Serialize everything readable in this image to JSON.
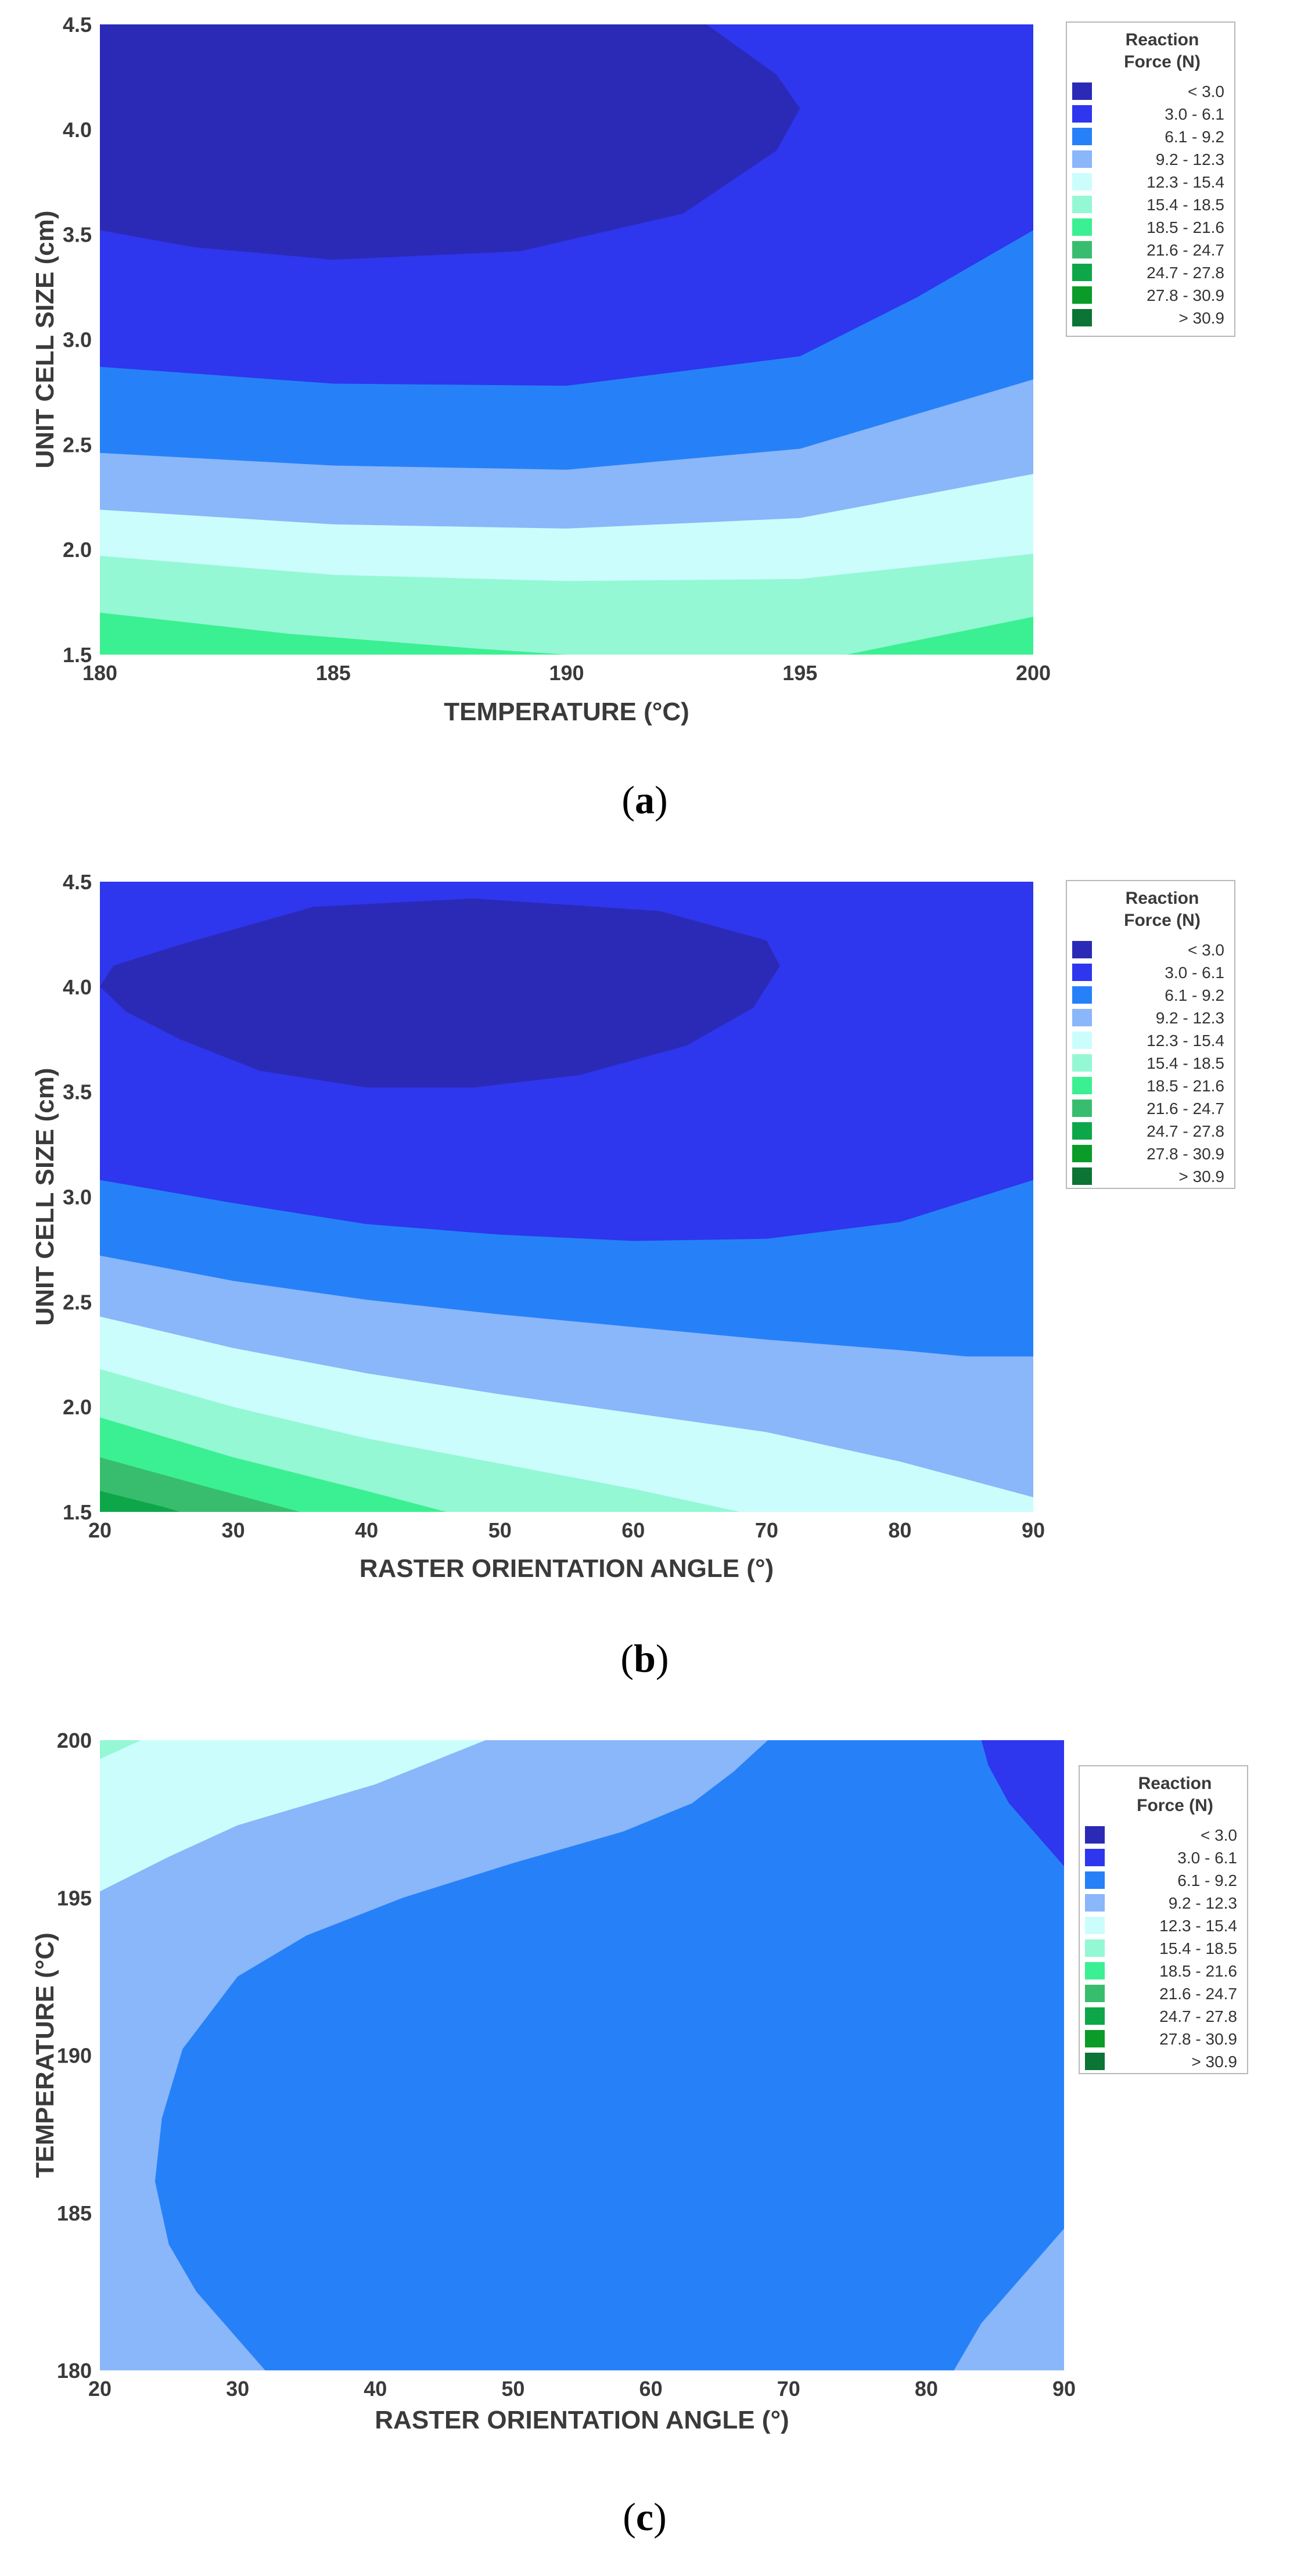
{
  "legend": {
    "title_line1": "Reaction",
    "title_line2": "Force (N)",
    "levels": [
      {
        "label": "<  3.0",
        "color": "#2b2ab6"
      },
      {
        "label": "3.0  -  6.1",
        "color": "#2e36ee"
      },
      {
        "label": "6.1  -  9.2",
        "color": "#2681f8"
      },
      {
        "label": "9.2  -  12.3",
        "color": "#8ab6fa"
      },
      {
        "label": "12.3  -  15.4",
        "color": "#ccfdfd"
      },
      {
        "label": "15.4  -  18.5",
        "color": "#94f8d4"
      },
      {
        "label": "18.5  -  21.6",
        "color": "#3bf092"
      },
      {
        "label": "21.6  -  24.7",
        "color": "#38bd6e"
      },
      {
        "label": "24.7  -  27.8",
        "color": "#0da74a"
      },
      {
        "label": "27.8  -  30.9",
        "color": "#0b9b28"
      },
      {
        "label": "> 30.9",
        "color": "#0c7434"
      }
    ]
  },
  "chart_data": [
    {
      "type": "contour",
      "panel": "a",
      "caption_letter": "a",
      "xlabel": "TEMPERATURE (°C)",
      "ylabel": "UNIT CELL SIZE (cm)",
      "xlim": [
        180,
        200
      ],
      "ylim": [
        1.5,
        4.5
      ],
      "xticks": [
        "180",
        "185",
        "190",
        "195",
        "200"
      ],
      "yticks": [
        "1.5",
        "2.0",
        "2.5",
        "3.0",
        "3.5",
        "4.0",
        "4.5"
      ],
      "regions": [
        {
          "level": "3.0  -  6.1",
          "points": [
            [
              180,
              4.5
            ],
            [
              200,
              4.5
            ],
            [
              200,
              1.5
            ],
            [
              180,
              1.5
            ]
          ]
        },
        {
          "level": "6.1  -  9.2",
          "points": [
            [
              180,
              2.87
            ],
            [
              185,
              2.79
            ],
            [
              190,
              2.78
            ],
            [
              195,
              2.92
            ],
            [
              197.5,
              3.2
            ],
            [
              200,
              3.52
            ],
            [
              200,
              1.5
            ],
            [
              180,
              1.5
            ]
          ]
        },
        {
          "level": "9.2  -  12.3",
          "points": [
            [
              180,
              2.46
            ],
            [
              185,
              2.4
            ],
            [
              190,
              2.38
            ],
            [
              195,
              2.48
            ],
            [
              200,
              2.81
            ],
            [
              200,
              1.5
            ],
            [
              180,
              1.5
            ]
          ]
        },
        {
          "level": "12.3  -  15.4",
          "points": [
            [
              180,
              2.19
            ],
            [
              185,
              2.12
            ],
            [
              190,
              2.1
            ],
            [
              195,
              2.15
            ],
            [
              200,
              2.36
            ],
            [
              200,
              1.5
            ],
            [
              180,
              1.5
            ]
          ]
        },
        {
          "level": "15.4  -  18.5",
          "points": [
            [
              180,
              1.97
            ],
            [
              185,
              1.88
            ],
            [
              190,
              1.85
            ],
            [
              195,
              1.86
            ],
            [
              200,
              1.98
            ],
            [
              200,
              1.5
            ],
            [
              180,
              1.5
            ]
          ]
        },
        {
          "level": "18.5  -  21.6",
          "points": [
            [
              180,
              1.7
            ],
            [
              184,
              1.6
            ],
            [
              188,
              1.53
            ],
            [
              190,
              1.5
            ],
            [
              196,
              1.5
            ],
            [
              200,
              1.68
            ],
            [
              200,
              1.5
            ],
            [
              180,
              1.5
            ]
          ]
        },
        {
          "level": "<  3.0",
          "points": [
            [
              180,
              4.5
            ],
            [
              193,
              4.5
            ],
            [
              194.5,
              4.26
            ],
            [
              195,
              4.1
            ],
            [
              194.5,
              3.9
            ],
            [
              192.5,
              3.6
            ],
            [
              189,
              3.42
            ],
            [
              185,
              3.38
            ],
            [
              182,
              3.44
            ],
            [
              180,
              3.52
            ]
          ]
        }
      ]
    },
    {
      "type": "contour",
      "panel": "b",
      "caption_letter": "b",
      "xlabel": "RASTER ORIENTATION ANGLE (°)",
      "ylabel": "UNIT CELL SIZE (cm)",
      "xlim": [
        20,
        90
      ],
      "ylim": [
        1.5,
        4.5
      ],
      "xticks": [
        "20",
        "30",
        "40",
        "50",
        "60",
        "70",
        "80",
        "90"
      ],
      "yticks": [
        "1.5",
        "2.0",
        "2.5",
        "3.0",
        "3.5",
        "4.0",
        "4.5"
      ],
      "regions": [
        {
          "level": "3.0  -  6.1",
          "points": [
            [
              20,
              4.5
            ],
            [
              90,
              4.5
            ],
            [
              90,
              1.5
            ],
            [
              20,
              1.5
            ]
          ]
        },
        {
          "level": "6.1  -  9.2",
          "points": [
            [
              20,
              3.08
            ],
            [
              30,
              2.97
            ],
            [
              40,
              2.87
            ],
            [
              50,
              2.82
            ],
            [
              60,
              2.79
            ],
            [
              70,
              2.8
            ],
            [
              80,
              2.88
            ],
            [
              90,
              3.08
            ],
            [
              90,
              1.5
            ],
            [
              20,
              1.5
            ]
          ]
        },
        {
          "level": "9.2  -  12.3",
          "points": [
            [
              20,
              2.72
            ],
            [
              30,
              2.6
            ],
            [
              40,
              2.51
            ],
            [
              50,
              2.44
            ],
            [
              60,
              2.38
            ],
            [
              70,
              2.32
            ],
            [
              80,
              2.27
            ],
            [
              85,
              2.24
            ],
            [
              90,
              2.24
            ],
            [
              90,
              1.5
            ],
            [
              20,
              1.5
            ]
          ]
        },
        {
          "level": "12.3  -  15.4",
          "points": [
            [
              20,
              2.43
            ],
            [
              30,
              2.28
            ],
            [
              40,
              2.16
            ],
            [
              50,
              2.06
            ],
            [
              60,
              1.97
            ],
            [
              70,
              1.88
            ],
            [
              80,
              1.74
            ],
            [
              90,
              1.57
            ],
            [
              90,
              1.5
            ],
            [
              20,
              1.5
            ]
          ]
        },
        {
          "level": "15.4  -  18.5",
          "points": [
            [
              20,
              2.18
            ],
            [
              30,
              2.0
            ],
            [
              40,
              1.85
            ],
            [
              50,
              1.73
            ],
            [
              60,
              1.61
            ],
            [
              68,
              1.5
            ],
            [
              20,
              1.5
            ]
          ]
        },
        {
          "level": "18.5  -  21.6",
          "points": [
            [
              20,
              1.95
            ],
            [
              30,
              1.76
            ],
            [
              40,
              1.6
            ],
            [
              46,
              1.5
            ],
            [
              20,
              1.5
            ]
          ]
        },
        {
          "level": "21.6  -  24.7",
          "points": [
            [
              20,
              1.76
            ],
            [
              28,
              1.62
            ],
            [
              35,
              1.5
            ],
            [
              20,
              1.5
            ]
          ]
        },
        {
          "level": "24.7  -  27.8",
          "points": [
            [
              20,
              1.6
            ],
            [
              25,
              1.52
            ],
            [
              26,
              1.5
            ],
            [
              20,
              1.5
            ]
          ]
        },
        {
          "level": "<  3.0",
          "points": [
            [
              26,
              4.2
            ],
            [
              36,
              4.38
            ],
            [
              48,
              4.42
            ],
            [
              62,
              4.36
            ],
            [
              70,
              4.22
            ],
            [
              71,
              4.1
            ],
            [
              69,
              3.9
            ],
            [
              64,
              3.72
            ],
            [
              56,
              3.58
            ],
            [
              48,
              3.52
            ],
            [
              40,
              3.52
            ],
            [
              32,
              3.6
            ],
            [
              26,
              3.75
            ],
            [
              22,
              3.88
            ],
            [
              20,
              4.0
            ],
            [
              21,
              4.1
            ]
          ]
        }
      ]
    },
    {
      "type": "contour",
      "panel": "c",
      "caption_letter": "c",
      "xlabel": "RASTER ORIENTATION ANGLE (°)",
      "ylabel": "TEMPERATURE (°C)",
      "xlim": [
        20,
        90
      ],
      "ylim": [
        180,
        200
      ],
      "xticks": [
        "20",
        "30",
        "40",
        "50",
        "60",
        "70",
        "80",
        "90"
      ],
      "yticks": [
        "180",
        "185",
        "190",
        "195",
        "200"
      ],
      "regions": [
        {
          "level": "9.2  -  12.3",
          "points": [
            [
              20,
              200
            ],
            [
              90,
              200
            ],
            [
              90,
              180
            ],
            [
              20,
              180
            ]
          ]
        },
        {
          "level": "12.3  -  15.4",
          "points": [
            [
              20,
              195.2
            ],
            [
              25,
              196.3
            ],
            [
              30,
              197.3
            ],
            [
              40,
              198.6
            ],
            [
              48,
              200
            ],
            [
              20,
              200
            ]
          ]
        },
        {
          "level": "15.4  -  18.5",
          "points": [
            [
              20,
              199.4
            ],
            [
              23,
              200
            ],
            [
              20,
              200
            ]
          ]
        },
        {
          "level": "6.1  -  9.2",
          "points": [
            [
              68.5,
              200
            ],
            [
              90,
              200
            ],
            [
              90,
              184.5
            ],
            [
              87,
              183
            ],
            [
              84,
              181.5
            ],
            [
              82,
              180
            ],
            [
              32,
              180
            ],
            [
              30,
              181
            ],
            [
              27,
              182.5
            ],
            [
              25,
              184
            ],
            [
              24,
              186
            ],
            [
              24.5,
              188
            ],
            [
              26,
              190.2
            ],
            [
              30,
              192.5
            ],
            [
              35,
              193.8
            ],
            [
              42,
              195
            ],
            [
              50,
              196.1
            ],
            [
              58,
              197.1
            ],
            [
              63,
              198
            ],
            [
              66,
              199
            ]
          ]
        },
        {
          "level": "3.0  -  6.1",
          "points": [
            [
              84,
              200
            ],
            [
              90,
              200
            ],
            [
              90,
              196
            ],
            [
              88,
              197
            ],
            [
              86,
              198
            ],
            [
              84.5,
              199.2
            ]
          ]
        }
      ]
    }
  ]
}
